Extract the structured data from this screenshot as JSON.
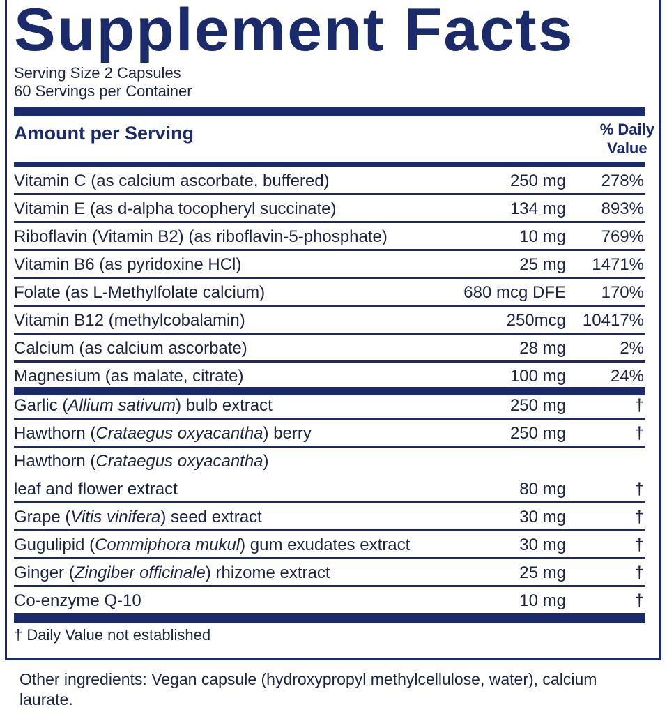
{
  "title": "Supplement Facts",
  "serving_size": "Serving Size 2 Capsules",
  "servings_per_container": "60 Servings per Container",
  "header": {
    "amount_per_serving": "Amount per Serving",
    "daily_value_line1": "% Daily",
    "daily_value_line2": "Value"
  },
  "vitamins": [
    {
      "name": [
        {
          "t": "Vitamin C (as calcium ascorbate, buffered)"
        }
      ],
      "amount": "250 mg",
      "dv": "278%"
    },
    {
      "name": [
        {
          "t": "Vitamin E (as d-alpha tocopheryl succinate)"
        }
      ],
      "amount": "134 mg",
      "dv": "893%"
    },
    {
      "name": [
        {
          "t": "Riboflavin (Vitamin B2) (as riboflavin-5-phosphate)"
        }
      ],
      "amount": "10 mg",
      "dv": "769%"
    },
    {
      "name": [
        {
          "t": "Vitamin B6 (as pyridoxine HCl)"
        }
      ],
      "amount": "25 mg",
      "dv": "1471%"
    },
    {
      "name": [
        {
          "t": "Folate (as L-Methylfolate calcium)"
        }
      ],
      "amount": "680 mcg DFE",
      "dv": "170%"
    },
    {
      "name": [
        {
          "t": "Vitamin B12 (methylcobalamin)"
        }
      ],
      "amount": "250mcg",
      "dv": "10417%"
    },
    {
      "name": [
        {
          "t": "Calcium (as calcium ascorbate)"
        }
      ],
      "amount": "28 mg",
      "dv": "2%"
    },
    {
      "name": [
        {
          "t": "Magnesium (as malate, citrate)"
        }
      ],
      "amount": "100 mg",
      "dv": "24%"
    }
  ],
  "others": [
    {
      "name": [
        {
          "t": "Garlic ("
        },
        {
          "t": "Allium sativum",
          "i": true
        },
        {
          "t": ") bulb extract"
        }
      ],
      "amount": "250 mg",
      "dv": "†"
    },
    {
      "name": [
        {
          "t": "Hawthorn ("
        },
        {
          "t": "Crataegus oxyacantha",
          "i": true
        },
        {
          "t": ") berry"
        }
      ],
      "amount": "250 mg",
      "dv": "†"
    },
    {
      "name": [
        {
          "t": "Hawthorn ("
        },
        {
          "t": "Crataegus oxyacantha",
          "i": true
        },
        {
          "t": ")"
        }
      ],
      "amount": "",
      "dv": "",
      "noline": true
    },
    {
      "name": [
        {
          "t": "leaf and flower extract"
        }
      ],
      "amount": "80 mg",
      "dv": "†"
    },
    {
      "name": [
        {
          "t": "Grape ("
        },
        {
          "t": "Vitis vinifera",
          "i": true
        },
        {
          "t": ") seed extract"
        }
      ],
      "amount": "30 mg",
      "dv": "†"
    },
    {
      "name": [
        {
          "t": "Gugulipid ("
        },
        {
          "t": "Commiphora mukul",
          "i": true
        },
        {
          "t": ") gum exudates extract"
        }
      ],
      "amount": "30 mg",
      "dv": "†"
    },
    {
      "name": [
        {
          "t": "Ginger ("
        },
        {
          "t": "Zingiber officinale",
          "i": true
        },
        {
          "t": ") rhizome extract"
        }
      ],
      "amount": "25 mg",
      "dv": "†"
    },
    {
      "name": [
        {
          "t": "Co-enzyme Q-10"
        }
      ],
      "amount": "10 mg",
      "dv": "†",
      "noline": true
    }
  ],
  "footnote": "†  Daily Value not established",
  "other_ingredients": "Other ingredients: Vegan capsule (hydroxypropyl methylcellulose, water), calcium laurate.",
  "colors": {
    "brand": "#1b2a6b",
    "text": "#1c2340"
  }
}
